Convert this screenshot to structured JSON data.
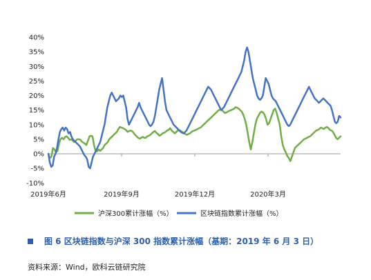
{
  "chart_data": {
    "type": "line",
    "x_ticks": [
      "2019年6月",
      "2019年9月",
      "2019年12月",
      "2020年3月"
    ],
    "ylim": [
      -10,
      40
    ],
    "y_ticks": [
      -10,
      -5,
      0,
      5,
      10,
      15,
      20,
      25,
      30,
      35,
      40
    ],
    "y_tick_labels": [
      "-10%",
      "-5%",
      "0%",
      "5%",
      "10%",
      "15%",
      "20%",
      "25%",
      "30%",
      "35%",
      "40%"
    ],
    "legend_position": "bottom",
    "series": [
      {
        "name": "沪深300累计涨幅（%）",
        "color": "#70ad47",
        "values": [
          0,
          -1.5,
          -1,
          2,
          1.5,
          0.5,
          1,
          3.5,
          5,
          5.5,
          5,
          5.8,
          6,
          5.5,
          4.8,
          5,
          4.5,
          4,
          4.5,
          5,
          5,
          4.8,
          4.2,
          3.8,
          3.5,
          3,
          4.5,
          6,
          6.2,
          6,
          3,
          1,
          0.8,
          1.5,
          1,
          1.5,
          2,
          3,
          3.5,
          4,
          5,
          5.5,
          6,
          6.5,
          7,
          7.5,
          8.5,
          9.2,
          9,
          8.8,
          8.5,
          8.2,
          7.5,
          7.8,
          8,
          7.8,
          7.2,
          6.5,
          6,
          5.5,
          5.2,
          5.5,
          5.8,
          5.5,
          5.5,
          6,
          6.2,
          6.5,
          7,
          7.5,
          7.8,
          7.2,
          6.8,
          6.2,
          6.5,
          7,
          7.2,
          7.5,
          8,
          8.2,
          8.8,
          8,
          7.5,
          7,
          7.5,
          8,
          8.2,
          7.8,
          7.5,
          7,
          6.8,
          6.5,
          6.8,
          7,
          7.5,
          7.8,
          8,
          8.2,
          8.5,
          8.8,
          9,
          9.5,
          10,
          10.5,
          11,
          11.5,
          12,
          12.5,
          13,
          13.5,
          14,
          14.5,
          15,
          15.2,
          15,
          14.5,
          14,
          14.2,
          14.5,
          14.8,
          15,
          15.2,
          15.5,
          16,
          15.8,
          15.5,
          15,
          14.5,
          13.5,
          12,
          10,
          7,
          4,
          1.5,
          4,
          7,
          10,
          12,
          13,
          14,
          14.5,
          14.2,
          13.5,
          12,
          10,
          10.5,
          12,
          13.5,
          15,
          15.5,
          14,
          12,
          10,
          6,
          3,
          1.5,
          0.5,
          -0.8,
          -1.5,
          -2.5,
          -1,
          0.5,
          2,
          2.5,
          3,
          3.5,
          4,
          4.5,
          5,
          5.2,
          5.5,
          5.8,
          6,
          6.5,
          7,
          7.5,
          8,
          8.2,
          8.5,
          9,
          8.8,
          8.5,
          9,
          9.2,
          8.8,
          8.2,
          8,
          7.5,
          6.5,
          5.5,
          5,
          5.5,
          6
        ],
        "line_width": 2.5
      },
      {
        "name": "区块链指数累计涨幅（%）",
        "color": "#4472c4",
        "values": [
          0,
          -3,
          -4.5,
          -4,
          -1,
          0,
          2,
          5,
          7.5,
          8.5,
          9,
          8,
          9,
          8.5,
          7,
          7.5,
          6,
          5,
          4.5,
          4,
          3.5,
          3,
          2.5,
          1.5,
          0.5,
          -0.5,
          -1,
          -2,
          -4.5,
          -5,
          -3,
          -1,
          0,
          1,
          2,
          3,
          4,
          6,
          8,
          10,
          13,
          16,
          18,
          20,
          21,
          20,
          19,
          18,
          18.5,
          19,
          20,
          19.5,
          20,
          18,
          16,
          12,
          10,
          11,
          12,
          13,
          14,
          15,
          16,
          17.5,
          16,
          15,
          14,
          13,
          12,
          11,
          10,
          9.5,
          10,
          11,
          13,
          16,
          19,
          22,
          24,
          26,
          22,
          18,
          15,
          14,
          13,
          12,
          11,
          10,
          9.5,
          9,
          8.5,
          8,
          7.5,
          7.2,
          7,
          7.5,
          8,
          9,
          10,
          11,
          12,
          13,
          14,
          15,
          16,
          17,
          18,
          19,
          20,
          21,
          22,
          23,
          22.5,
          22,
          21,
          20,
          19,
          18,
          17,
          16,
          15,
          15.5,
          16,
          17,
          18,
          19,
          20,
          21,
          22,
          23,
          24,
          25,
          26,
          27,
          28,
          30,
          32,
          35,
          36.5,
          35,
          32,
          29,
          26,
          24,
          22,
          20,
          19,
          18.5,
          19,
          20,
          23,
          26,
          25,
          24,
          22,
          20,
          19,
          18.5,
          18,
          17,
          16,
          15,
          14,
          13,
          12,
          11,
          10,
          9.5,
          10,
          11,
          12,
          13,
          14,
          15,
          16,
          17,
          18,
          19,
          20,
          21,
          22,
          23,
          22,
          21,
          20,
          19,
          18.5,
          18,
          17.5,
          18,
          18.5,
          19,
          18.5,
          18,
          17.5,
          17,
          16.5,
          15,
          13,
          11,
          10.5,
          11,
          13,
          12.5
        ],
        "line_width": 2.5
      }
    ]
  },
  "caption": {
    "text": "图 6  区块链指数与沪深 300 指数累计涨幅（基期：2019 年 6 月 3 日）"
  },
  "source": {
    "text": "资料来源：Wind，欧科云链研究院"
  }
}
